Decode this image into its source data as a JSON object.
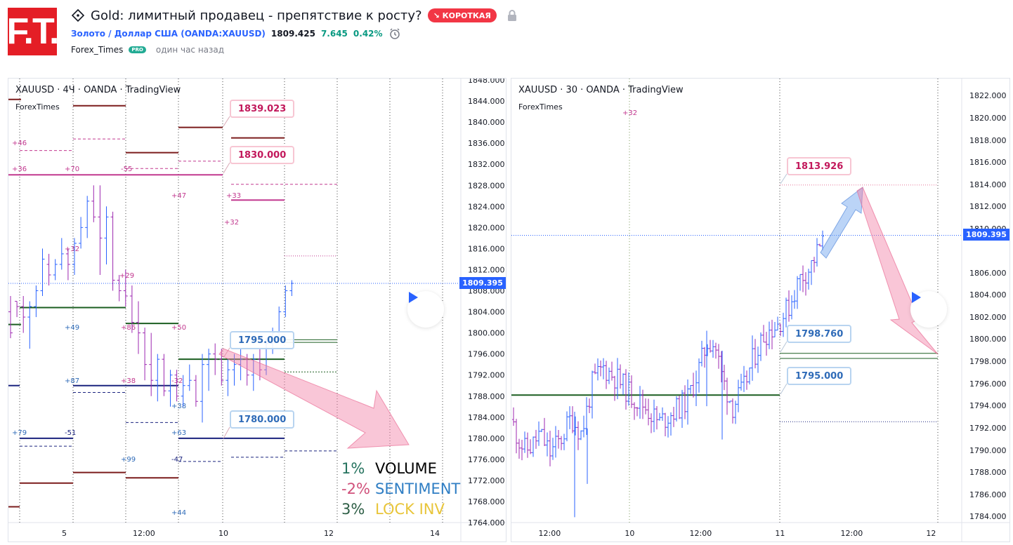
{
  "header": {
    "logo_text": "F.T.",
    "idea_title": "Gold: лимитный продавец - препятствие к росту?",
    "short_badge": "↘ КОРОТКАЯ",
    "symbol_link": "Золото / Доллар США (OANDA:XAUUSD)",
    "price": "1809.425",
    "change": "7.645",
    "change_pct": "0.42%",
    "author": "Forex_Times",
    "pro_badge": "PRO",
    "time_ago": "один час назад"
  },
  "left_chart": {
    "legend": "XAUUSD · 4Ч · OANDA · TradingView",
    "sub": "ForexTimes",
    "y_ticks": [
      "1848.000",
      "1844.000",
      "1840.000",
      "1836.000",
      "1832.000",
      "1828.000",
      "1824.000",
      "1820.000",
      "1816.000",
      "1812.000",
      "1808.000",
      "1804.000",
      "1800.000",
      "1796.000",
      "1792.000",
      "1788.000",
      "1784.000",
      "1780.000",
      "1776.000",
      "1772.000",
      "1768.000",
      "1764.000"
    ],
    "x_ticks": [
      "5",
      "12:00",
      "10",
      "12",
      "14"
    ],
    "last_price": "1809.395",
    "callouts": {
      "c1": "1839.023",
      "c2": "1830.000",
      "c3": "1795.000",
      "c4": "1780.000"
    },
    "small_labels": [
      "+46",
      "+36",
      "+70",
      "-55",
      "+47",
      "+33",
      "+32",
      "+32",
      "+29",
      "+49",
      "+86",
      "+50",
      "+87",
      "+38",
      "-32",
      "+38",
      "+79",
      "-51",
      "+63",
      "+99",
      "-47",
      "+44"
    ],
    "stats": [
      {
        "value": "1%",
        "label": "VOLUME",
        "value_color": "#26735f",
        "label_color": "#000000"
      },
      {
        "value": "-2%",
        "label": "SENTIMENT",
        "value_color": "#d0507a",
        "label_color": "#2f7ec4"
      },
      {
        "value": "3%",
        "label": "LOCK INV",
        "value_color": "#2d5e45",
        "label_color": "#e8c53a"
      }
    ]
  },
  "right_chart": {
    "legend": "XAUUSD · 30 · OANDA · TradingView",
    "sub": "ForexTimes",
    "y_ticks": [
      "1822.000",
      "1820.000",
      "1818.000",
      "1816.000",
      "1814.000",
      "1812.000",
      "1810.000",
      "1806.000",
      "1804.000",
      "1802.000",
      "1800.000",
      "1798.000",
      "1796.000",
      "1794.000",
      "1792.000",
      "1790.000",
      "1788.000",
      "1786.000",
      "1784.000"
    ],
    "x_ticks": [
      "12:00",
      "10",
      "12:00",
      "11",
      "12:00",
      "12"
    ],
    "last_price": "1809.395",
    "callouts": {
      "c1": "1813.926",
      "c2": "1798.760",
      "c3": "1795.000"
    },
    "small_label": "+32"
  },
  "colors": {
    "up": "#2962ff",
    "down": "#9c27b0",
    "accent": "#2962ff",
    "green": "#1b5e20",
    "maroon": "#7b1c1c"
  }
}
